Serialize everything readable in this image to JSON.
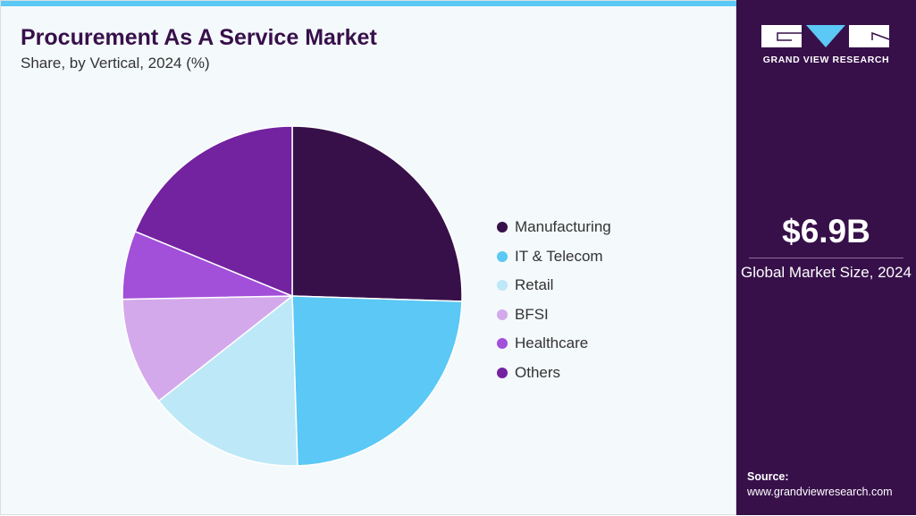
{
  "header": {
    "title": "Procurement As A Service Market",
    "subtitle": "Share, by Vertical, 2024 (%)"
  },
  "chart_data": {
    "type": "pie",
    "title": "Procurement As A Service Market",
    "subtitle": "Share, by Vertical, 2024 (%)",
    "legend_position": "right",
    "categories": [
      "Manufacturing",
      "IT & Telecom",
      "Retail",
      "BFSI",
      "Healthcare",
      "Others"
    ],
    "values": [
      25.5,
      24.0,
      14.9,
      10.3,
      6.5,
      18.8
    ],
    "colors": [
      "#37104a",
      "#5bc8f5",
      "#bde8f8",
      "#d3a9ec",
      "#a24fd9",
      "#7322a0"
    ]
  },
  "sidebar": {
    "logo_text": "GRAND VIEW RESEARCH",
    "market_size": "$6.9B",
    "market_size_label": "Global Market Size, 2024",
    "source_label": "Source:",
    "source_url": "www.grandviewresearch.com"
  }
}
